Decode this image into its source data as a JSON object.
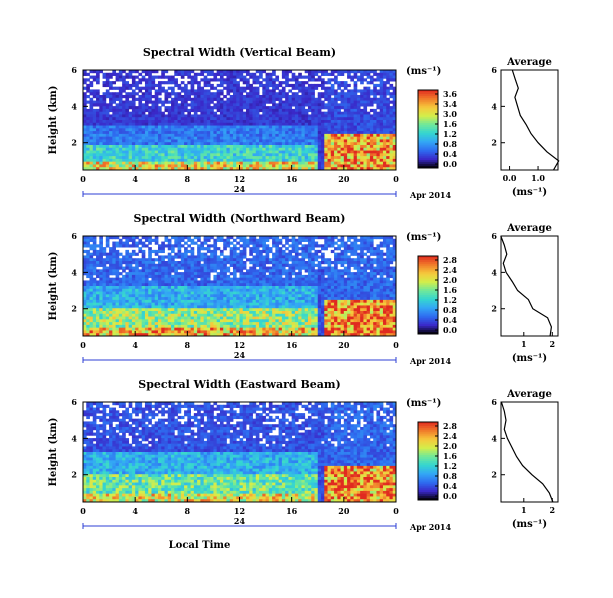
{
  "panels": [
    {
      "title": "Spectral Width (Vertical Beam)",
      "y_label": "Height (km)",
      "y_ticks": [
        "6",
        "4",
        "2"
      ],
      "x_ticks": [
        "0",
        "4",
        "8",
        "12",
        "16",
        "20",
        "0"
      ],
      "date_marker": "24",
      "date_label": "Apr 2014",
      "colorbar_unit": "(ms⁻¹)",
      "colorbar_ticks": [
        "3.6",
        "3.4",
        "3.0",
        "1.6",
        "1.2",
        "0.8",
        "0.4",
        "0.0"
      ],
      "avg_title": "Average",
      "avg_y_ticks": [
        "6",
        "4",
        "2"
      ],
      "avg_x_ticks": [
        "0.0",
        "1.0"
      ],
      "avg_x_label": "(ms⁻¹)"
    },
    {
      "title": "Spectral Width (Northward Beam)",
      "y_label": "Height (km)",
      "y_ticks": [
        "6",
        "4",
        "2"
      ],
      "x_ticks": [
        "0",
        "4",
        "8",
        "12",
        "16",
        "20",
        "0"
      ],
      "date_marker": "24",
      "date_label": "Apr 2014",
      "colorbar_unit": "(ms⁻¹)",
      "colorbar_ticks": [
        "2.8",
        "2.4",
        "2.0",
        "1.6",
        "1.2",
        "0.8",
        "0.4",
        "0.0"
      ],
      "avg_title": "Average",
      "avg_y_ticks": [
        "6",
        "4",
        "2"
      ],
      "avg_x_ticks": [
        "1",
        "2"
      ],
      "avg_x_label": "(ms⁻¹)"
    },
    {
      "title": "Spectral Width (Eastward Beam)",
      "y_label": "Height (km)",
      "y_ticks": [
        "6",
        "4",
        "2"
      ],
      "x_ticks": [
        "0",
        "4",
        "8",
        "12",
        "16",
        "20",
        "0"
      ],
      "date_marker": "24",
      "date_label": "Apr 2014",
      "colorbar_unit": "(ms⁻¹)",
      "colorbar_ticks": [
        "2.8",
        "2.4",
        "2.0",
        "1.6",
        "1.2",
        "0.8",
        "0.4",
        "0.0"
      ],
      "avg_title": "Average",
      "avg_y_ticks": [
        "6",
        "4",
        "2"
      ],
      "avg_x_ticks": [
        "1",
        "2"
      ],
      "avg_x_label": "(ms⁻¹)"
    }
  ],
  "x_axis_label": "Local Time",
  "colors": {
    "map_stops": [
      "#000000",
      "#3a28c8",
      "#2e6cf0",
      "#33a6f5",
      "#35d6d0",
      "#6fe89a",
      "#d4ee4a",
      "#f6c83c",
      "#f07a2a",
      "#e02a20"
    ],
    "date_line": "#2d3fd6",
    "background": "#ffffff"
  },
  "chart_data": [
    {
      "type": "heatmap",
      "title": "Spectral Width (Vertical Beam)",
      "xlabel": "",
      "ylabel": "Height (km)",
      "xlim_hours": [
        0,
        24
      ],
      "ylim_km": [
        0.5,
        6
      ],
      "colorbar_range": [
        0.0,
        3.6
      ],
      "layers": [
        {
          "y": [
            0.5,
            1.0
          ],
          "x": [
            0,
            18
          ],
          "value": 2.6
        },
        {
          "y": [
            1.0,
            1.8
          ],
          "x": [
            0,
            18
          ],
          "value": 1.6
        },
        {
          "y": [
            1.8,
            3.0
          ],
          "x": [
            0,
            18
          ],
          "value": 0.9
        },
        {
          "y": [
            3.0,
            6.0
          ],
          "x": [
            0,
            18
          ],
          "value": 0.5
        },
        {
          "y": [
            0.5,
            2.5
          ],
          "x": [
            18.5,
            24
          ],
          "value": 3.0
        },
        {
          "y": [
            2.5,
            6.0
          ],
          "x": [
            18.5,
            24
          ],
          "value": 0.6
        }
      ],
      "profile": {
        "height_km": [
          0.5,
          1.0,
          1.5,
          2.0,
          2.5,
          3.0,
          3.5,
          4.0,
          4.5,
          5.0,
          5.5,
          6.0
        ],
        "width_ms": [
          1.6,
          1.6,
          1.3,
          1.0,
          0.8,
          0.6,
          0.4,
          0.3,
          0.2,
          0.3,
          0.2,
          0.1
        ]
      }
    },
    {
      "type": "heatmap",
      "title": "Spectral Width (Northward Beam)",
      "xlabel": "",
      "ylabel": "Height (km)",
      "xlim_hours": [
        0,
        24
      ],
      "ylim_km": [
        0.5,
        6
      ],
      "colorbar_range": [
        0.0,
        2.8
      ],
      "layers": [
        {
          "y": [
            0.5,
            1.0
          ],
          "x": [
            0,
            18
          ],
          "value": 2.2
        },
        {
          "y": [
            1.0,
            2.0
          ],
          "x": [
            0,
            18
          ],
          "value": 1.7
        },
        {
          "y": [
            2.0,
            3.2
          ],
          "x": [
            0,
            18
          ],
          "value": 1.0
        },
        {
          "y": [
            3.2,
            6.0
          ],
          "x": [
            0,
            18
          ],
          "value": 0.6
        },
        {
          "y": [
            0.5,
            2.5
          ],
          "x": [
            18.5,
            24
          ],
          "value": 2.5
        },
        {
          "y": [
            2.5,
            6.0
          ],
          "x": [
            18.5,
            24
          ],
          "value": 0.6
        }
      ],
      "profile": {
        "height_km": [
          0.5,
          1.0,
          1.5,
          2.0,
          2.5,
          3.0,
          3.5,
          4.0,
          4.5,
          5.0,
          5.5,
          6.0
        ],
        "width_ms": [
          2.0,
          2.0,
          1.8,
          1.4,
          1.1,
          0.8,
          0.6,
          0.4,
          0.3,
          0.4,
          0.3,
          0.2
        ]
      }
    },
    {
      "type": "heatmap",
      "title": "Spectral Width (Eastward Beam)",
      "xlabel": "Local Time",
      "ylabel": "Height (km)",
      "xlim_hours": [
        0,
        24
      ],
      "ylim_km": [
        0.5,
        6
      ],
      "colorbar_range": [
        0.0,
        2.8
      ],
      "layers": [
        {
          "y": [
            0.5,
            1.0
          ],
          "x": [
            0,
            18
          ],
          "value": 2.0
        },
        {
          "y": [
            1.0,
            2.0
          ],
          "x": [
            0,
            18
          ],
          "value": 1.5
        },
        {
          "y": [
            2.0,
            3.2
          ],
          "x": [
            0,
            18
          ],
          "value": 1.0
        },
        {
          "y": [
            3.2,
            6.0
          ],
          "x": [
            0,
            18
          ],
          "value": 0.5
        },
        {
          "y": [
            0.5,
            2.5
          ],
          "x": [
            18.5,
            24
          ],
          "value": 2.4
        },
        {
          "y": [
            2.5,
            6.0
          ],
          "x": [
            18.5,
            24
          ],
          "value": 0.6
        }
      ],
      "profile": {
        "height_km": [
          0.5,
          1.0,
          1.5,
          2.0,
          2.5,
          3.0,
          3.5,
          4.0,
          4.5,
          5.0,
          5.5,
          6.0
        ],
        "width_ms": [
          1.9,
          1.9,
          1.7,
          1.3,
          1.0,
          0.8,
          0.6,
          0.4,
          0.3,
          0.4,
          0.3,
          0.2
        ]
      }
    }
  ]
}
